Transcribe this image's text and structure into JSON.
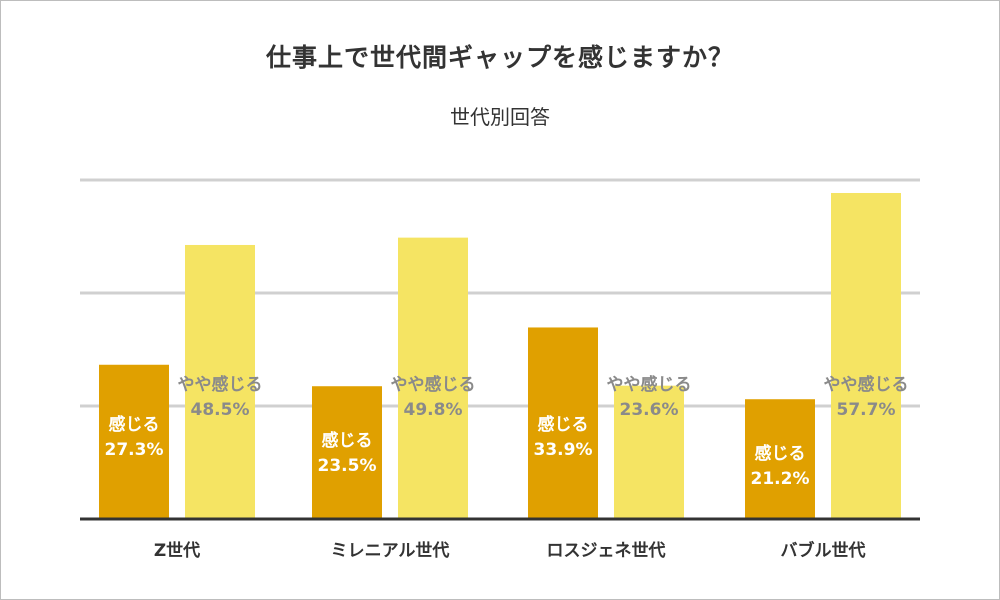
{
  "chart_data": {
    "type": "bar",
    "title": "仕事上で世代間ギャップを感じますか？",
    "subtitle": "世代別回答",
    "categories": [
      "Z世代",
      "ミレニアル世代",
      "ロスジェネ世代",
      "バブル世代"
    ],
    "series": [
      {
        "name": "感じる",
        "values": [
          27.3,
          23.5,
          33.9,
          21.2
        ],
        "color": "#e0a000"
      },
      {
        "name": "やや感じる",
        "values": [
          48.5,
          49.8,
          23.6,
          57.7
        ],
        "color": "#f5e463"
      }
    ],
    "value_suffix": "%",
    "ylim": [
      0,
      60
    ],
    "grid": true,
    "gridline_color": "#d0d0d0",
    "axis_color": "#333333",
    "label_color_dark": "#ffffff",
    "label_color_light": "#8a8a8a"
  }
}
